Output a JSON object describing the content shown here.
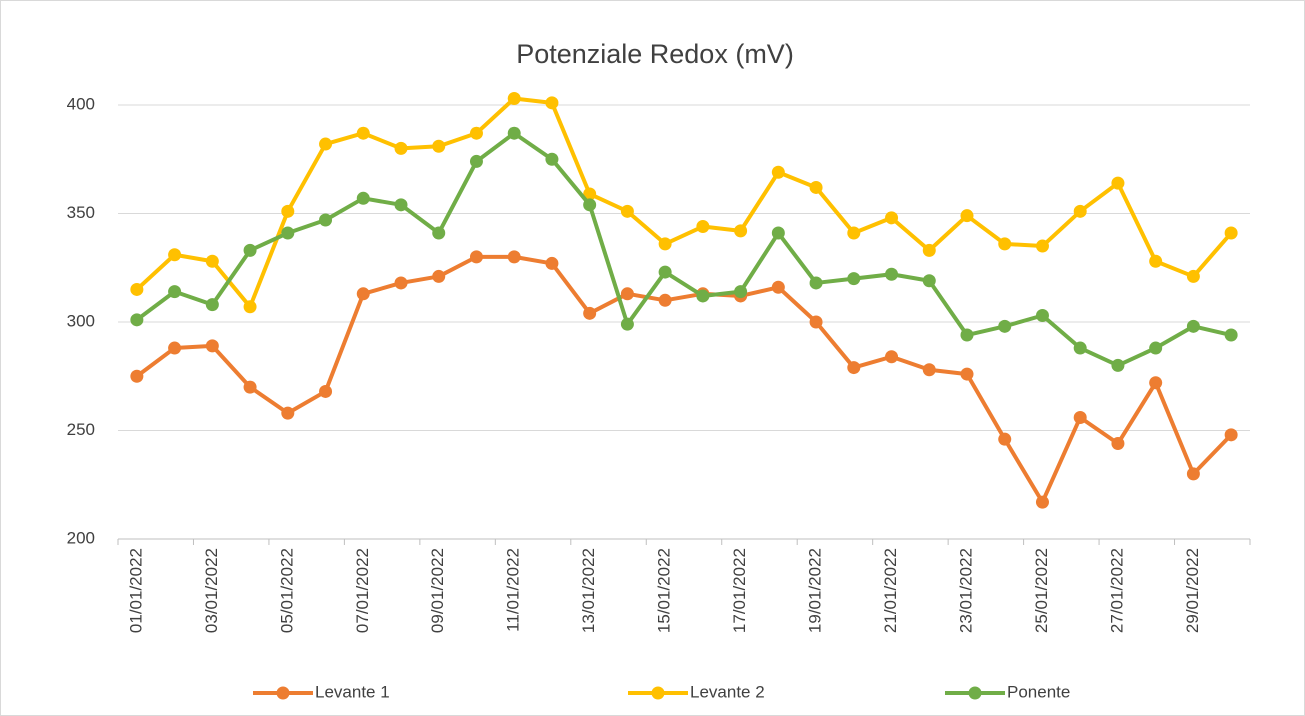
{
  "chart_data": {
    "type": "line",
    "title": "Potenziale Redox (mV)",
    "categories": [
      "01/01/2022",
      null,
      "03/01/2022",
      null,
      "05/01/2022",
      null,
      "07/01/2022",
      null,
      "09/01/2022",
      null,
      "11/01/2022",
      null,
      "13/01/2022",
      null,
      "15/01/2022",
      null,
      "17/01/2022",
      null,
      "19/01/2022",
      null,
      "21/01/2022",
      null,
      "23/01/2022",
      null,
      "25/01/2022",
      null,
      "27/01/2022",
      null,
      "29/01/2022",
      null
    ],
    "series": [
      {
        "name": "Levante 1",
        "color": "#ed7d31",
        "values": [
          275,
          288,
          289,
          270,
          258,
          268,
          313,
          318,
          321,
          330,
          330,
          327,
          304,
          313,
          310,
          313,
          312,
          316,
          300,
          279,
          284,
          278,
          276,
          246,
          217,
          256,
          244,
          272,
          230,
          248
        ]
      },
      {
        "name": "Levante 2",
        "color": "#ffc000",
        "values": [
          315,
          331,
          328,
          307,
          351,
          382,
          387,
          380,
          381,
          387,
          403,
          401,
          359,
          351,
          336,
          344,
          342,
          369,
          362,
          341,
          348,
          333,
          349,
          336,
          335,
          351,
          364,
          328,
          321,
          341
        ]
      },
      {
        "name": "Ponente",
        "color": "#70ad47",
        "values": [
          301,
          314,
          308,
          333,
          341,
          347,
          357,
          354,
          341,
          374,
          387,
          375,
          354,
          299,
          323,
          312,
          314,
          341,
          318,
          320,
          322,
          319,
          294,
          298,
          303,
          288,
          280,
          288,
          298,
          294
        ]
      }
    ],
    "ylim": [
      200,
      400
    ],
    "yticks": [
      200,
      250,
      300,
      350,
      400
    ],
    "grid": true,
    "legend": "bottom"
  }
}
